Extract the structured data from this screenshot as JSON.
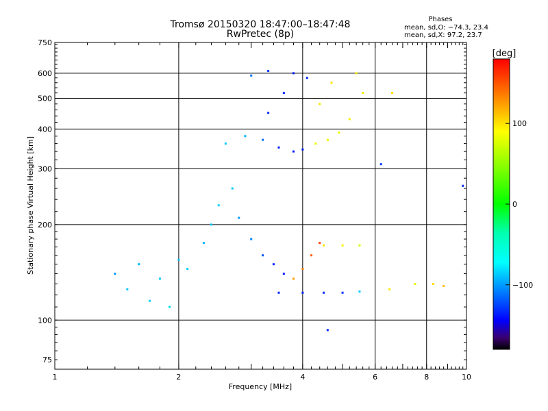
{
  "title": {
    "line1": "Tromsø 20150320 18:47:00–18:47:48",
    "line2": "RwPretec (8p)"
  },
  "stats": {
    "heading": "Phases",
    "line_o": "mean, sd,O: −74.3, 23.4",
    "line_x": "mean, sd,X:  97.2, 23.7"
  },
  "colorbar": {
    "unit_label": "[deg]",
    "tick_labels": [
      "100",
      "0",
      "−100"
    ],
    "tick_values": [
      100,
      0,
      -100
    ],
    "range": [
      -180,
      180
    ]
  },
  "chart_data": {
    "type": "scatter",
    "xlabel": "Frequency [MHz]",
    "ylabel": "Stationary phase Virtual Height [km]",
    "xscale": "log",
    "yscale": "log",
    "xlim": [
      1,
      10
    ],
    "ylim": [
      70,
      750
    ],
    "x_ticks": [
      1,
      2,
      4,
      6,
      8,
      10
    ],
    "x_tick_labels": [
      "1",
      "2",
      "4",
      "6",
      "8",
      "10"
    ],
    "y_ticks": [
      75,
      100,
      200,
      300,
      400,
      500,
      600,
      750
    ],
    "y_tick_labels": [
      "75",
      "100",
      "200",
      "300",
      "400",
      "500",
      "600",
      "750"
    ],
    "grid": true,
    "color_map": "rainbow (phase in degrees)",
    "points": [
      {
        "x": 1.4,
        "y": 140,
        "c": -80
      },
      {
        "x": 1.5,
        "y": 125,
        "c": -70
      },
      {
        "x": 1.6,
        "y": 150,
        "c": -75
      },
      {
        "x": 1.7,
        "y": 115,
        "c": -65
      },
      {
        "x": 1.8,
        "y": 135,
        "c": -70
      },
      {
        "x": 1.9,
        "y": 110,
        "c": -60
      },
      {
        "x": 2.0,
        "y": 155,
        "c": -72
      },
      {
        "x": 2.1,
        "y": 145,
        "c": -68
      },
      {
        "x": 2.3,
        "y": 175,
        "c": -75
      },
      {
        "x": 2.4,
        "y": 200,
        "c": -70
      },
      {
        "x": 2.5,
        "y": 230,
        "c": -65
      },
      {
        "x": 2.7,
        "y": 260,
        "c": -70
      },
      {
        "x": 2.8,
        "y": 210,
        "c": -80
      },
      {
        "x": 3.0,
        "y": 180,
        "c": -85
      },
      {
        "x": 3.2,
        "y": 160,
        "c": -95
      },
      {
        "x": 3.4,
        "y": 150,
        "c": -110
      },
      {
        "x": 3.6,
        "y": 140,
        "c": -115
      },
      {
        "x": 3.8,
        "y": 135,
        "c": 150
      },
      {
        "x": 4.0,
        "y": 145,
        "c": 160
      },
      {
        "x": 4.2,
        "y": 160,
        "c": 165
      },
      {
        "x": 4.4,
        "y": 175,
        "c": 170
      },
      {
        "x": 3.5,
        "y": 122,
        "c": -110
      },
      {
        "x": 4.0,
        "y": 122,
        "c": -115
      },
      {
        "x": 4.5,
        "y": 122,
        "c": -110
      },
      {
        "x": 5.0,
        "y": 122,
        "c": -105
      },
      {
        "x": 5.5,
        "y": 123,
        "c": -70
      },
      {
        "x": 4.5,
        "y": 172,
        "c": 120
      },
      {
        "x": 5.0,
        "y": 172,
        "c": 110
      },
      {
        "x": 5.5,
        "y": 172,
        "c": 90
      },
      {
        "x": 2.6,
        "y": 360,
        "c": -70
      },
      {
        "x": 2.9,
        "y": 380,
        "c": -75
      },
      {
        "x": 3.2,
        "y": 370,
        "c": -90
      },
      {
        "x": 3.5,
        "y": 350,
        "c": -115
      },
      {
        "x": 3.8,
        "y": 340,
        "c": -120
      },
      {
        "x": 4.0,
        "y": 345,
        "c": -118
      },
      {
        "x": 4.3,
        "y": 360,
        "c": 110
      },
      {
        "x": 4.6,
        "y": 370,
        "c": 105
      },
      {
        "x": 4.9,
        "y": 390,
        "c": 100
      },
      {
        "x": 5.2,
        "y": 430,
        "c": 115
      },
      {
        "x": 5.6,
        "y": 520,
        "c": 120
      },
      {
        "x": 3.3,
        "y": 450,
        "c": -110
      },
      {
        "x": 3.6,
        "y": 520,
        "c": -115
      },
      {
        "x": 3.8,
        "y": 600,
        "c": -120
      },
      {
        "x": 4.1,
        "y": 580,
        "c": -110
      },
      {
        "x": 4.4,
        "y": 480,
        "c": 120
      },
      {
        "x": 4.7,
        "y": 560,
        "c": 125
      },
      {
        "x": 5.4,
        "y": 600,
        "c": 115
      },
      {
        "x": 3.0,
        "y": 590,
        "c": -90
      },
      {
        "x": 3.3,
        "y": 610,
        "c": -100
      },
      {
        "x": 6.5,
        "y": 125,
        "c": 120
      },
      {
        "x": 7.5,
        "y": 130,
        "c": 110
      },
      {
        "x": 8.3,
        "y": 130,
        "c": 130
      },
      {
        "x": 8.8,
        "y": 128,
        "c": 140
      },
      {
        "x": 6.6,
        "y": 520,
        "c": 130
      },
      {
        "x": 4.6,
        "y": 93,
        "c": -110
      },
      {
        "x": 6.2,
        "y": 310,
        "c": -100
      },
      {
        "x": 9.8,
        "y": 265,
        "c": -110
      }
    ]
  }
}
